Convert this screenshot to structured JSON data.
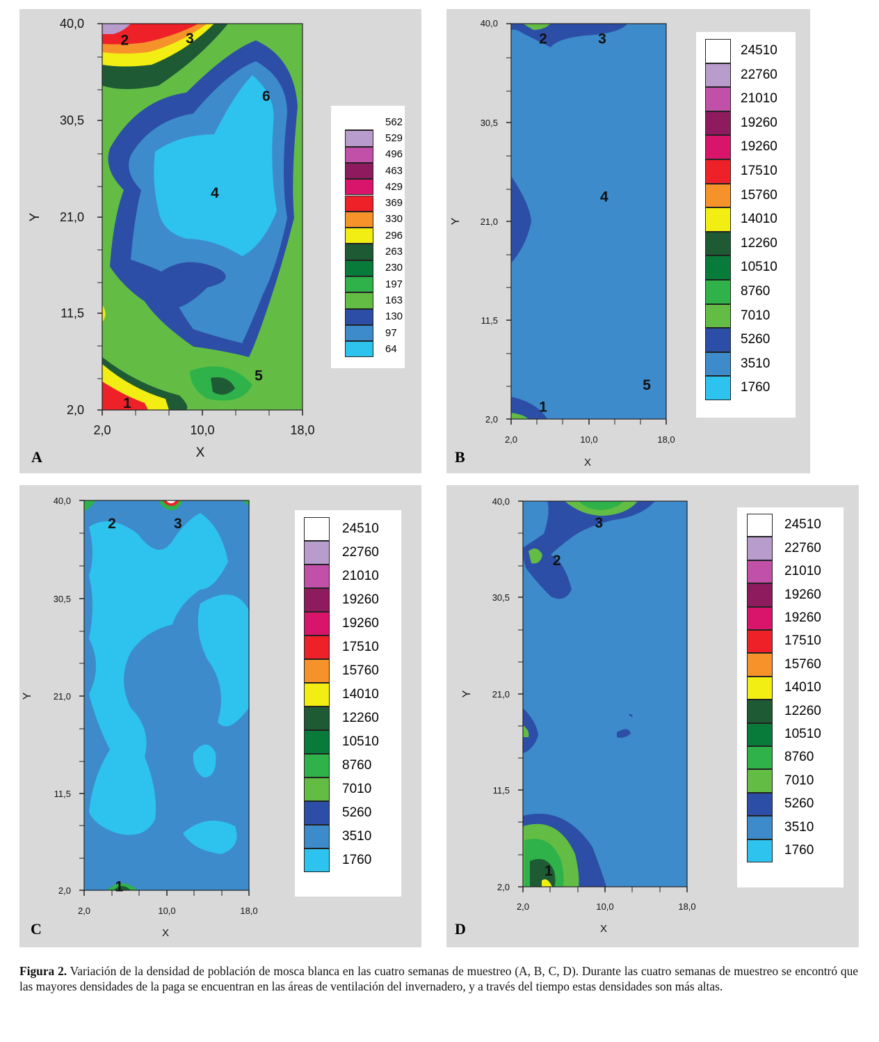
{
  "chart_data": [
    {
      "panel_label": "A",
      "type": "heatmap",
      "xlabel": "X",
      "ylabel": "Y",
      "xlim": [
        2,
        18
      ],
      "ylim": [
        2,
        40
      ],
      "x_ticks": [
        "2,0",
        "10,0",
        "18,0"
      ],
      "y_ticks": [
        "40,0",
        "30,5",
        "21,0",
        "11,5",
        "2,0"
      ],
      "legend_levels": [
        "562",
        "529",
        "496",
        "463",
        "429",
        "369",
        "330",
        "296",
        "263",
        "230",
        "197",
        "163",
        "130",
        "97",
        "64"
      ],
      "legend_colors": [
        "#ffffff",
        "#b79ccc",
        "#c050a8",
        "#8e1b5e",
        "#d8156a",
        "#ee2028",
        "#f6922a",
        "#f2ee14",
        "#1e5a34",
        "#087b3a",
        "#2fb24a",
        "#63bd45",
        "#2c4ea6",
        "#3d8bcb",
        "#2ec3ef"
      ],
      "base_color": "#63bd45",
      "annotations": [
        {
          "label": "1",
          "x": 4.0,
          "y": 2.7
        },
        {
          "label": "2",
          "x": 3.8,
          "y": 38.4
        },
        {
          "label": "3",
          "x": 9.0,
          "y": 38.6
        },
        {
          "label": "4",
          "x": 11.0,
          "y": 23.4
        },
        {
          "label": "5",
          "x": 14.5,
          "y": 5.4
        },
        {
          "label": "6",
          "x": 15.1,
          "y": 32.9
        }
      ]
    },
    {
      "panel_label": "B",
      "type": "heatmap",
      "xlabel": "X",
      "ylabel": "Y",
      "xlim": [
        2,
        18
      ],
      "ylim": [
        2,
        40
      ],
      "x_ticks": [
        "2,0",
        "10,0",
        "18,0"
      ],
      "y_ticks": [
        "40,0",
        "30,5",
        "21,0",
        "11,5",
        "2,0"
      ],
      "legend_levels": [
        "24510",
        "22760",
        "21010",
        "19260",
        "19260",
        "17510",
        "15760",
        "14010",
        "12260",
        "10510",
        "8760",
        "7010",
        "5260",
        "3510",
        "1760"
      ],
      "legend_colors": [
        "#ffffff",
        "#b79ccc",
        "#c050a8",
        "#8e1b5e",
        "#d8156a",
        "#ee2028",
        "#f6922a",
        "#f2ee14",
        "#1e5a34",
        "#087b3a",
        "#2fb24a",
        "#63bd45",
        "#2c4ea6",
        "#3d8bcb",
        "#2ec3ef"
      ],
      "base_color": "#3d8bcb",
      "annotations": [
        {
          "label": "1",
          "x": 5.3,
          "y": 3.2
        },
        {
          "label": "2",
          "x": 5.3,
          "y": 38.6
        },
        {
          "label": "3",
          "x": 11.4,
          "y": 38.6
        },
        {
          "label": "4",
          "x": 11.6,
          "y": 23.4
        },
        {
          "label": "5",
          "x": 16.0,
          "y": 5.3
        }
      ]
    },
    {
      "panel_label": "C",
      "type": "heatmap",
      "xlabel": "X",
      "ylabel": "Y",
      "xlim": [
        2,
        18
      ],
      "ylim": [
        2,
        40
      ],
      "x_ticks": [
        "2,0",
        "10,0",
        "18,0"
      ],
      "y_ticks": [
        "40,0",
        "30,5",
        "21,0",
        "11,5",
        "2,0"
      ],
      "legend_levels": [
        "24510",
        "22760",
        "21010",
        "19260",
        "19260",
        "17510",
        "15760",
        "14010",
        "12260",
        "10510",
        "8760",
        "7010",
        "5260",
        "3510",
        "1760"
      ],
      "legend_colors": [
        "#ffffff",
        "#b79ccc",
        "#c050a8",
        "#8e1b5e",
        "#d8156a",
        "#ee2028",
        "#f6922a",
        "#f2ee14",
        "#1e5a34",
        "#087b3a",
        "#2fb24a",
        "#63bd45",
        "#2c4ea6",
        "#3d8bcb",
        "#2ec3ef"
      ],
      "base_color": "#3d8bcb",
      "annotations": [
        {
          "label": "1",
          "x": 5.4,
          "y": 2.4
        },
        {
          "label": "2",
          "x": 4.7,
          "y": 37.8
        },
        {
          "label": "3",
          "x": 11.1,
          "y": 37.8
        }
      ]
    },
    {
      "panel_label": "D",
      "type": "heatmap",
      "xlabel": "X",
      "ylabel": "Y",
      "xlim": [
        2,
        18
      ],
      "ylim": [
        2,
        40
      ],
      "x_ticks": [
        "2,0",
        "10,0",
        "18,0"
      ],
      "y_ticks": [
        "40,0",
        "30,5",
        "21,0",
        "11,5",
        "2,0"
      ],
      "legend_levels": [
        "24510",
        "22760",
        "21010",
        "19260",
        "19260",
        "17510",
        "15760",
        "14010",
        "12260",
        "10510",
        "8760",
        "7010",
        "5260",
        "3510",
        "1760"
      ],
      "legend_colors": [
        "#ffffff",
        "#b79ccc",
        "#c050a8",
        "#8e1b5e",
        "#d8156a",
        "#ee2028",
        "#f6922a",
        "#f2ee14",
        "#1e5a34",
        "#087b3a",
        "#2fb24a",
        "#63bd45",
        "#2c4ea6",
        "#3d8bcb",
        "#2ec3ef"
      ],
      "base_color": "#3d8bcb",
      "annotations": [
        {
          "label": "1",
          "x": 4.5,
          "y": 3.6
        },
        {
          "label": "2",
          "x": 5.3,
          "y": 34.2
        },
        {
          "label": "3",
          "x": 9.4,
          "y": 37.9
        }
      ]
    }
  ],
  "caption": {
    "label": "Figura 2.",
    "text": " Variación de la densidad de población de mosca blanca en las cuatro semanas de muestreo (A, B, C, D). Durante las cuatro semanas de muestreo se encontró que las mayores densidades de la paga se encuentran en las áreas de ventilación del invernadero, y a través del tiempo estas densidades son más altas."
  }
}
